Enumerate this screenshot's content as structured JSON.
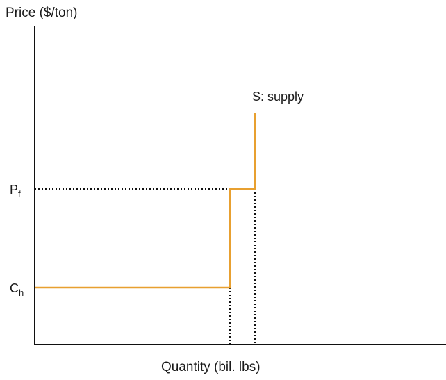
{
  "chart_data": {
    "type": "line",
    "title": "",
    "xlabel": "Quantity (bil. lbs)",
    "ylabel": "Price ($/ton)",
    "grid": false,
    "legend": "none",
    "y_ticks": [
      {
        "label": "C",
        "sub": "h"
      },
      {
        "label": "P",
        "sub": "f"
      }
    ],
    "series": [
      {
        "name": "S: supply",
        "color": "#E8A030",
        "points": [
          {
            "x": 0,
            "y": "C_h"
          },
          {
            "x": "Q1",
            "y": "C_h"
          },
          {
            "x": "Q1",
            "y": "P_f"
          },
          {
            "x": "Q2",
            "y": "P_f"
          },
          {
            "x": "Q2",
            "y": "above P_f"
          }
        ]
      }
    ],
    "reference_lines": [
      {
        "type": "horizontal",
        "at": "P_f",
        "style": "dotted"
      },
      {
        "type": "vertical",
        "at": "Q1",
        "style": "dotted"
      },
      {
        "type": "vertical",
        "at": "Q2",
        "style": "dotted"
      }
    ]
  }
}
